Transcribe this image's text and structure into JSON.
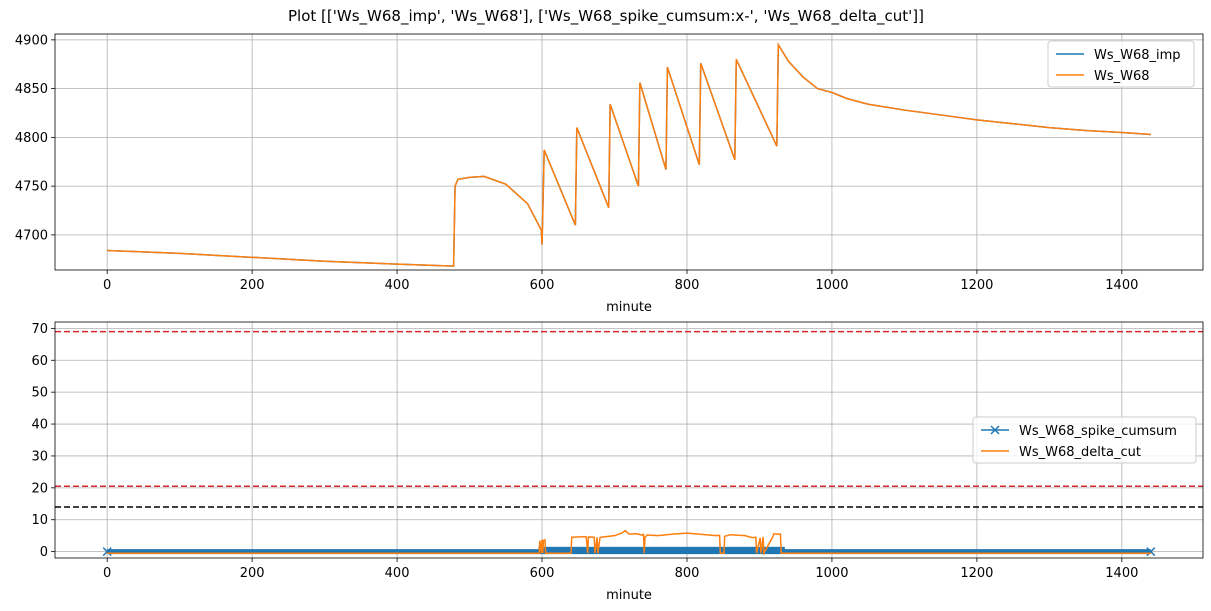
{
  "title": "Plot [['Ws_W68_imp', 'Ws_W68'], ['Ws_W68_spike_cumsum:x-', 'Ws_W68_delta_cut']]",
  "colors": {
    "blue": "#1f77b4",
    "orange": "#ff7f0e",
    "red": "#d62728",
    "black": "#000000",
    "grid": "#b0b0b0"
  },
  "chart_data": [
    {
      "type": "line",
      "xlabel": "minute",
      "ylabel": "",
      "xlim": [
        -72,
        1512
      ],
      "ylim": [
        4664,
        4906
      ],
      "xticks": [
        0,
        200,
        400,
        600,
        800,
        1000,
        1200,
        1400
      ],
      "yticks": [
        4700,
        4750,
        4800,
        4850,
        4900
      ],
      "grid": true,
      "legend_position": "upper right",
      "series": [
        {
          "name": "Ws_W68_imp",
          "color": "#1f77b4",
          "marker": "none",
          "style": "solid"
        },
        {
          "name": "Ws_W68",
          "color": "#ff7f0e",
          "marker": "none",
          "style": "solid"
        }
      ],
      "x": [
        0,
        100,
        200,
        300,
        400,
        478,
        480,
        484,
        500,
        520,
        550,
        580,
        599,
        600,
        603,
        646,
        648,
        692,
        694,
        733,
        735,
        771,
        773,
        817,
        819,
        866,
        868,
        924,
        926,
        940,
        960,
        980,
        1000,
        1020,
        1050,
        1100,
        1150,
        1200,
        1250,
        1300,
        1350,
        1400,
        1440
      ],
      "y": [
        4684,
        4681,
        4677,
        4673,
        4670,
        4668,
        4750,
        4757,
        4759,
        4760,
        4752,
        4732,
        4705,
        4690,
        4787,
        4710,
        4810,
        4728,
        4834,
        4750,
        4856,
        4767,
        4872,
        4772,
        4876,
        4777,
        4880,
        4791,
        4895,
        4878,
        4862,
        4850,
        4846,
        4840,
        4834,
        4828,
        4823,
        4818,
        4814,
        4810,
        4807,
        4805,
        4803
      ]
    },
    {
      "type": "line",
      "xlabel": "minute",
      "ylabel": "",
      "xlim": [
        -72,
        1512
      ],
      "ylim": [
        -2,
        72
      ],
      "xticks": [
        0,
        200,
        400,
        600,
        800,
        1000,
        1200,
        1400
      ],
      "yticks": [
        0,
        10,
        20,
        30,
        40,
        50,
        60,
        70
      ],
      "grid": true,
      "legend_position": "center right",
      "hlines": [
        {
          "y": 69,
          "color": "#d62728",
          "style": "dashed"
        },
        {
          "y": 20.5,
          "color": "#d62728",
          "style": "dashed"
        },
        {
          "y": 14,
          "color": "#000000",
          "style": "dashed"
        }
      ],
      "series": [
        {
          "name": "Ws_W68_spike_cumsum",
          "color": "#1f77b4",
          "marker": "x",
          "style": "solid",
          "x_range": [
            0,
            1440
          ],
          "value": 0,
          "dense_band": {
            "x": [
              595,
              935
            ],
            "y": [
              0,
              1.5
            ]
          }
        },
        {
          "name": "Ws_W68_delta_cut",
          "color": "#ff7f0e",
          "marker": "none",
          "style": "solid",
          "x": [
            0,
            596,
            597,
            599,
            600,
            601,
            602,
            604,
            605,
            640,
            641,
            660,
            661,
            663,
            664,
            672,
            673,
            676,
            677,
            680,
            681,
            700,
            710,
            715,
            720,
            730,
            738,
            740,
            741,
            742,
            745,
            760,
            780,
            800,
            830,
            840,
            845,
            846,
            851,
            852,
            860,
            880,
            890,
            895,
            896,
            901,
            902,
            905,
            906,
            918,
            920,
            925,
            929,
            930,
            940,
            1440
          ],
          "y": [
            -0.5,
            -0.5,
            3.5,
            -0.5,
            3.8,
            -0.5,
            3.5,
            3.7,
            -0.5,
            -0.5,
            4.5,
            4.7,
            4.5,
            -0.5,
            4.6,
            4.5,
            -0.5,
            4.5,
            -0.5,
            4.4,
            4.5,
            5.0,
            5.8,
            6.6,
            5.5,
            5.6,
            5.2,
            5.4,
            -0.5,
            4.5,
            5.2,
            5.0,
            5.5,
            5.8,
            5.2,
            5.0,
            5.1,
            -0.5,
            -0.5,
            4.8,
            5.3,
            5.0,
            4.4,
            4.5,
            -0.5,
            4.3,
            -0.5,
            4.6,
            -0.5,
            4.5,
            5.6,
            5.5,
            5.5,
            -0.5,
            -0.5,
            -0.5
          ]
        }
      ]
    }
  ]
}
